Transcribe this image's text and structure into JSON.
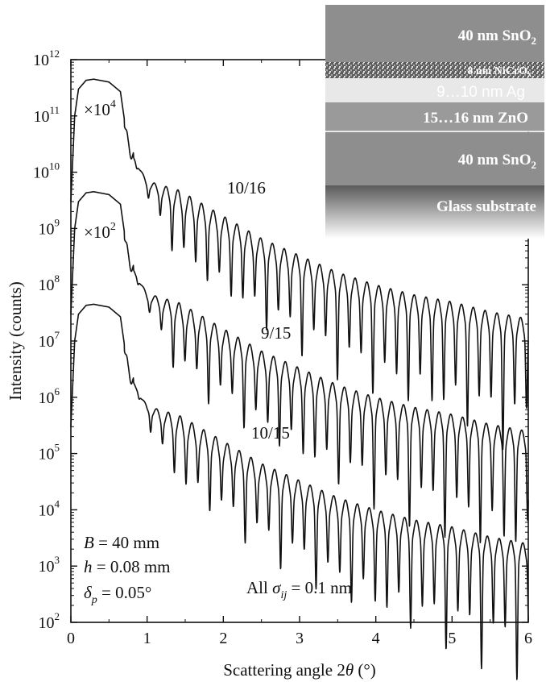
{
  "chart_data": {
    "type": "line",
    "xlabel_prefix": "Scattering angle 2",
    "xlabel_symbol": "θ",
    "xlabel_suffix": " (°)",
    "ylabel": "Intensity (counts)",
    "xlim": [
      0,
      6
    ],
    "ylim_log10": [
      2,
      12
    ],
    "y_scale": "log",
    "grid": false,
    "x_ticks": [
      "0",
      "1",
      "2",
      "3",
      "4",
      "5",
      "6"
    ],
    "y_ticks": [
      {
        "base": "10",
        "exp": "2"
      },
      {
        "base": "10",
        "exp": "3"
      },
      {
        "base": "10",
        "exp": "4"
      },
      {
        "base": "10",
        "exp": "5"
      },
      {
        "base": "10",
        "exp": "6"
      },
      {
        "base": "10",
        "exp": "7"
      },
      {
        "base": "10",
        "exp": "8"
      },
      {
        "base": "10",
        "exp": "9"
      },
      {
        "base": "10",
        "exp": "10"
      },
      {
        "base": "10",
        "exp": "11"
      },
      {
        "base": "10",
        "exp": "12"
      }
    ],
    "series": [
      {
        "name": "10/15",
        "multiplier": "",
        "plateau_log10": 7.65,
        "x": [
          0,
          0.05,
          0.1,
          0.2,
          0.3,
          0.5,
          0.65,
          0.75,
          0.85,
          1,
          1.5,
          2,
          2.5,
          3,
          3.5,
          4,
          4.5,
          5,
          5.5,
          6
        ],
        "y": [
          300000.0,
          10000000.0,
          30000000.0,
          43000000.0,
          45000000.0,
          40000000.0,
          27000000.0,
          3000000.0,
          1500000.0,
          600000.0,
          250000.0,
          100000.0,
          40000.0,
          20000.0,
          10000.0,
          6000.0,
          4000.0,
          3000.0,
          2000.0,
          1500.0
        ]
      },
      {
        "name": "9/15",
        "multiplier_base": "×10",
        "multiplier_exp": "2",
        "plateau_log10": 9.65,
        "x": [
          0,
          0.05,
          0.1,
          0.2,
          0.3,
          0.5,
          0.65,
          0.75,
          0.85,
          1,
          1.5,
          2,
          2.5,
          3,
          3.5,
          4,
          4.5,
          5,
          5.5,
          6
        ],
        "y": [
          30000000.0,
          1000000000.0,
          3000000000.0,
          4300000000.0,
          4500000000.0,
          4000000000.0,
          2700000000.0,
          300000000.0,
          150000000.0,
          60000000.0,
          25000000.0,
          10000000.0,
          4000000.0,
          2000000.0,
          1000000.0,
          600000.0,
          400000.0,
          300000.0,
          200000.0,
          150000.0
        ]
      },
      {
        "name": "10/16",
        "multiplier_base": "×10",
        "multiplier_exp": "4",
        "plateau_log10": 11.65,
        "x": [
          0,
          0.05,
          0.1,
          0.2,
          0.3,
          0.5,
          0.65,
          0.75,
          0.85,
          1,
          1.5,
          2,
          2.5,
          3,
          3.5,
          4,
          4.5,
          5,
          5.5,
          6
        ],
        "y": [
          3000000000.0,
          100000000000.0,
          300000000000.0,
          430000000000.0,
          450000000000.0,
          400000000000.0,
          270000000000.0,
          30000000000.0,
          15000000000.0,
          6000000000.0,
          2500000000.0,
          1000000000.0,
          400000000.0,
          200000000.0,
          100000000.0,
          60000000.0,
          40000000.0,
          30000000.0,
          20000000.0,
          15000000.0
        ]
      }
    ],
    "parameters": {
      "B_sym": "B",
      "B_val": " = 40 mm",
      "h_sym": "h",
      "h_val": " = 0.08 mm",
      "delta_sym": "δ",
      "delta_sub": "p",
      "delta_val": " = 0.05°"
    },
    "sigma_note": {
      "prefix": "All ",
      "sym": "σ",
      "sub": "ij",
      "val": " = 0.1 nm"
    }
  },
  "stack": {
    "layers": [
      {
        "name": "40 nm SnO",
        "sub": "2",
        "color": "#8e8e8e"
      },
      {
        "name": "8 nm NiCrO",
        "sub": "x",
        "color": "#6a6a6a"
      },
      {
        "name": "9…10 nm Ag",
        "sub": "",
        "color": "#e6e6e6"
      },
      {
        "name": "15…16 nm ZnO",
        "sub": "",
        "color": "#9a9a9a"
      },
      {
        "name": "40 nm SnO",
        "sub": "2",
        "color": "#8e8e8e"
      },
      {
        "name": "Glass substrate",
        "sub": "",
        "color": "#7a7a7a"
      }
    ]
  }
}
